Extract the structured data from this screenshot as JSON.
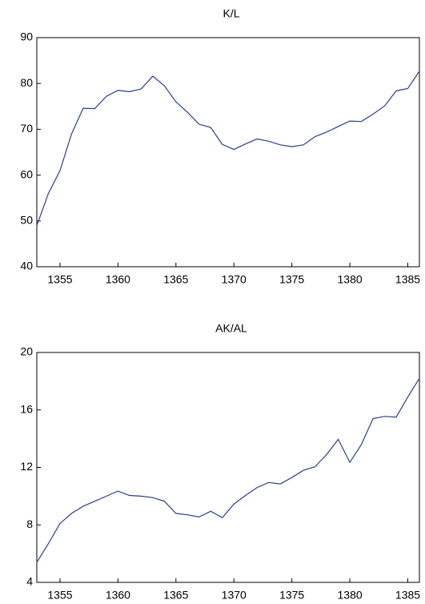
{
  "chart_data": [
    {
      "type": "line",
      "title": "K/L",
      "x": [
        1353,
        1354,
        1355,
        1356,
        1357,
        1358,
        1359,
        1360,
        1361,
        1362,
        1363,
        1364,
        1365,
        1366,
        1367,
        1368,
        1369,
        1370,
        1371,
        1372,
        1373,
        1374,
        1375,
        1376,
        1377,
        1378,
        1379,
        1380,
        1381,
        1382,
        1383,
        1384,
        1385,
        1386
      ],
      "series": [
        {
          "color": "#2b3f8f",
          "values": [
            49,
            56,
            61,
            69,
            74.6,
            74.5,
            77.2,
            78.5,
            78.2,
            78.8,
            81.6,
            79.5,
            76,
            73.7,
            71.1,
            70.4,
            66.7,
            65.6,
            66.8,
            67.9,
            67.4,
            66.6,
            66.2,
            66.6,
            68.4,
            69.4,
            70.6,
            71.8,
            71.7,
            73.3,
            75.1,
            78.4,
            78.9,
            82.7
          ]
        }
      ],
      "xlim": [
        1353,
        1386
      ],
      "xticks": [
        1355,
        1360,
        1365,
        1370,
        1375,
        1380,
        1385
      ],
      "ylim": [
        40,
        90
      ],
      "yticks": [
        40,
        50,
        60,
        70,
        80,
        90
      ]
    },
    {
      "type": "line",
      "title": "AK/AL",
      "x": [
        1353,
        1354,
        1355,
        1356,
        1357,
        1358,
        1359,
        1360,
        1361,
        1362,
        1363,
        1364,
        1365,
        1366,
        1367,
        1368,
        1369,
        1370,
        1371,
        1372,
        1373,
        1374,
        1375,
        1376,
        1377,
        1378,
        1379,
        1380,
        1381,
        1382,
        1383,
        1384,
        1385,
        1386
      ],
      "series": [
        {
          "color": "#2b3f8f",
          "values": [
            5.4,
            6.7,
            8.1,
            8.8,
            9.3,
            9.65,
            10,
            10.35,
            10.05,
            10,
            9.9,
            9.65,
            8.8,
            8.7,
            8.55,
            8.95,
            8.5,
            9.45,
            10.05,
            10.6,
            10.95,
            10.85,
            11.3,
            11.8,
            12.05,
            12.9,
            13.95,
            12.35,
            13.6,
            15.4,
            15.55,
            15.5,
            16.9,
            18.2
          ]
        }
      ],
      "xlim": [
        1353,
        1386
      ],
      "xticks": [
        1355,
        1360,
        1365,
        1370,
        1375,
        1380,
        1385
      ],
      "ylim": [
        4,
        20
      ],
      "yticks": [
        4,
        8,
        12,
        16,
        20
      ]
    }
  ]
}
